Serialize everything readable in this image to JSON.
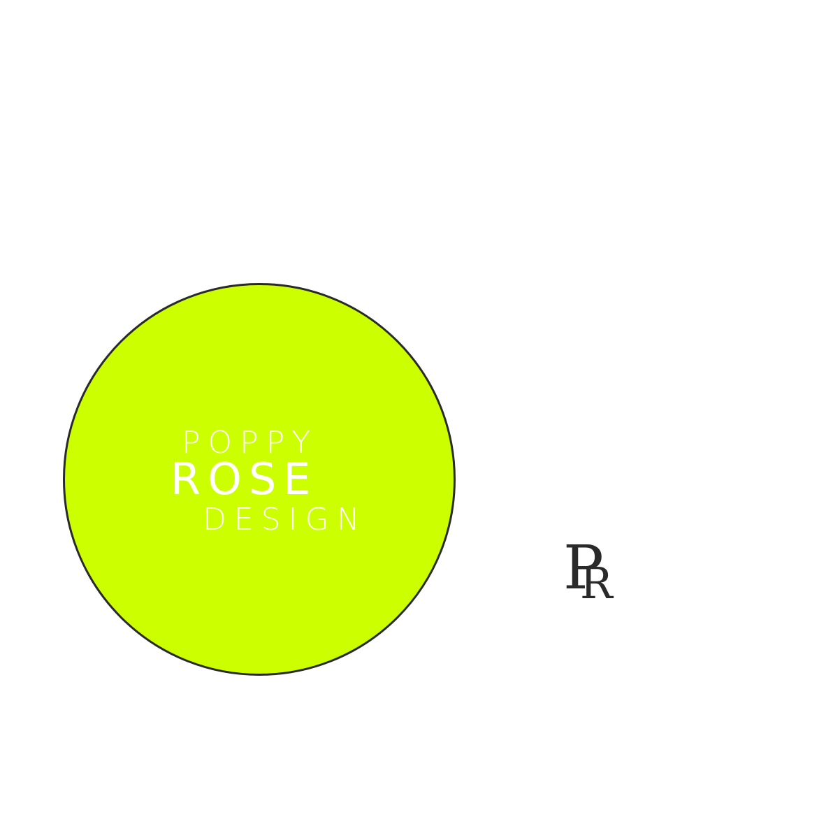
{
  "logo": {
    "circle_color": "#ccff00",
    "outline_color": "#2a2a2a",
    "text_color": "#ffffff",
    "line1": "POPPY",
    "line2": "ROSE",
    "line3": "DESIGN"
  },
  "monogram": {
    "letter1": "P",
    "letter2": "R",
    "color": "#2a2a2a"
  }
}
